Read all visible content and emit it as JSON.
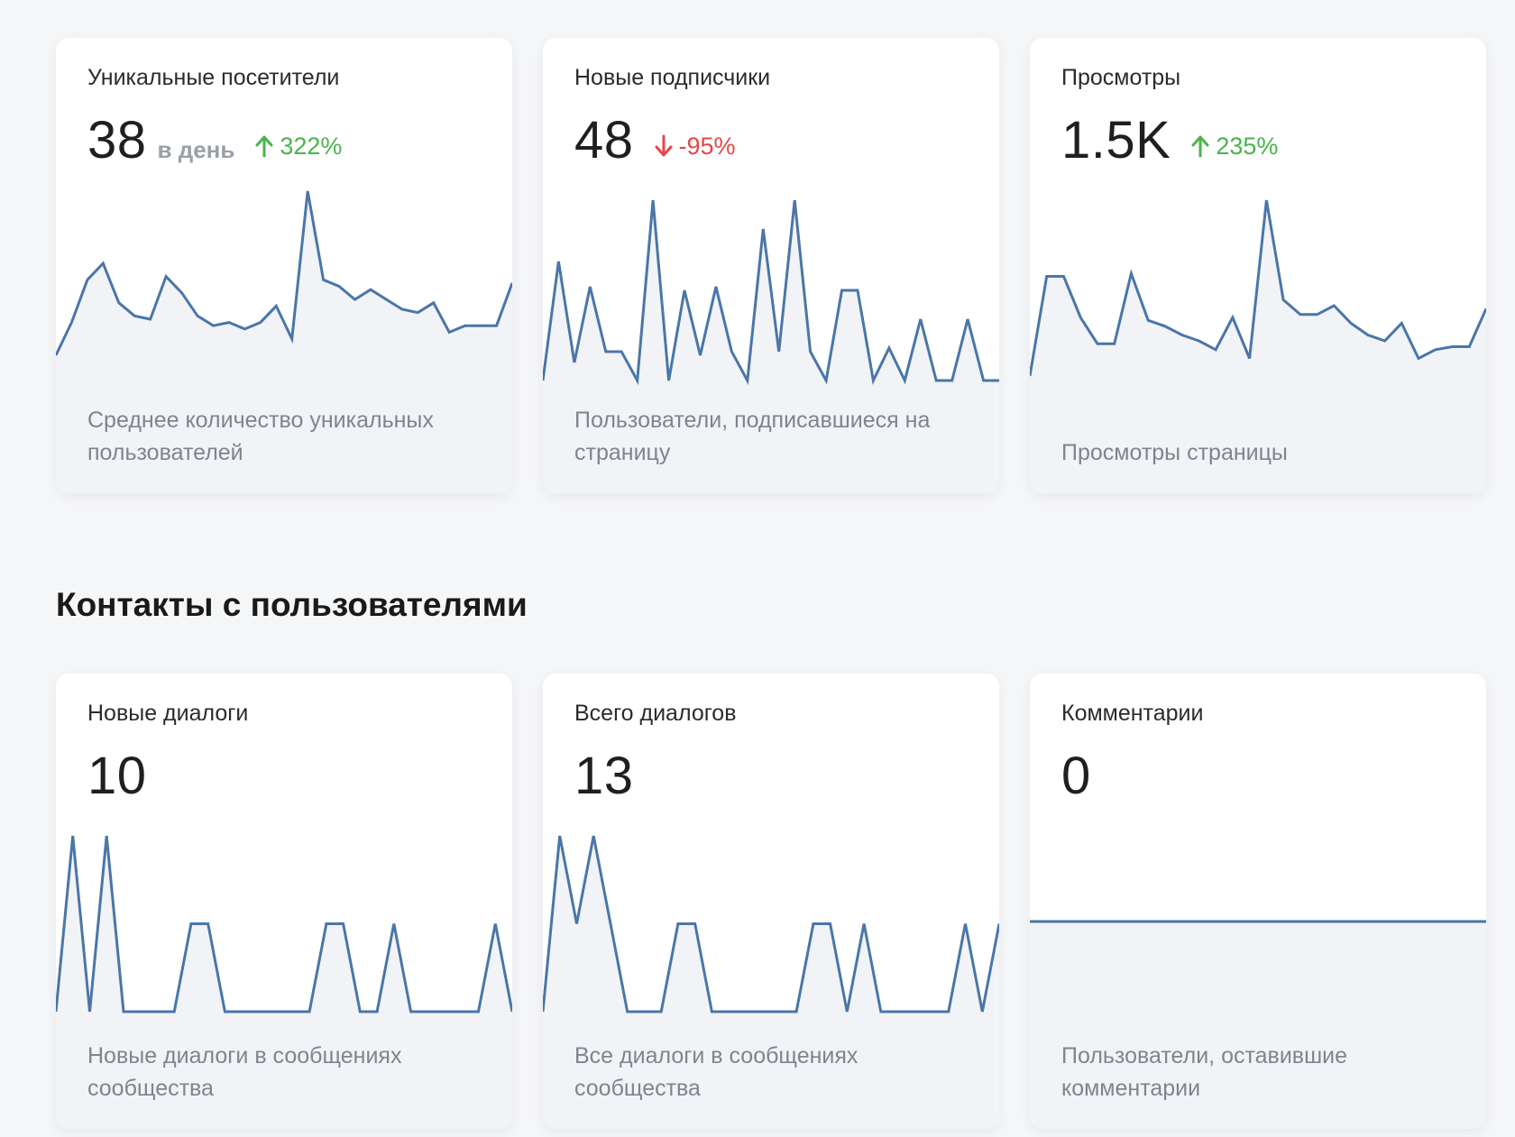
{
  "section_title": "Контакты с пользователями",
  "cards": [
    {
      "title": "Уникальные посетители",
      "value": "38",
      "unit": "в день",
      "change": "322%",
      "change_dir": "up",
      "description": "Среднее количество уникальных пользователей",
      "series": [
        0,
        10,
        23,
        28,
        16,
        12,
        11,
        24,
        19,
        12,
        9,
        10,
        8,
        10,
        15,
        5,
        50,
        23,
        21,
        17,
        20,
        17,
        14,
        13,
        16,
        7,
        9,
        9,
        9,
        22
      ]
    },
    {
      "title": "Новые подписчики",
      "value": "48",
      "unit": "",
      "change": "-95%",
      "change_dir": "down",
      "description": "Пользователи, подписавшиеся на страницу",
      "series": [
        0,
        33,
        5,
        26,
        8,
        8,
        0,
        50,
        0,
        25,
        7,
        26,
        8,
        0,
        42,
        8,
        50,
        8,
        0,
        25,
        25,
        0,
        9,
        0,
        17,
        0,
        0,
        17,
        0,
        0
      ]
    },
    {
      "title": "Просмотры",
      "value": "1.5K",
      "unit": "",
      "change": "235%",
      "change_dir": "up",
      "description": "Просмотры страницы",
      "series": [
        0,
        34,
        34,
        20,
        11,
        11,
        35,
        19,
        17,
        14,
        12,
        9,
        20,
        6,
        60,
        26,
        21,
        21,
        24,
        18,
        14,
        12,
        18,
        6,
        9,
        10,
        10,
        23
      ]
    },
    {
      "title": "Новые диалоги",
      "value": "10",
      "unit": "",
      "change": "",
      "change_dir": "",
      "description": "Новые диалоги в сообщениях сообщества",
      "series": [
        0,
        2,
        0,
        2,
        0,
        0,
        0,
        0,
        1,
        1,
        0,
        0,
        0,
        0,
        0,
        0,
        1,
        1,
        0,
        0,
        1,
        0,
        0,
        0,
        0,
        0,
        1,
        0
      ]
    },
    {
      "title": "Всего диалогов",
      "value": "13",
      "unit": "",
      "change": "",
      "change_dir": "",
      "description": "Все диалоги в сообщениях сообщества",
      "series": [
        0,
        2,
        1,
        2,
        1,
        0,
        0,
        0,
        1,
        1,
        0,
        0,
        0,
        0,
        0,
        0,
        1,
        1,
        0,
        1,
        0,
        0,
        0,
        0,
        0,
        1,
        0,
        1
      ]
    },
    {
      "title": "Комментарии",
      "value": "0",
      "unit": "",
      "change": "",
      "change_dir": "",
      "description": "Пользователи, оставившие комментарии",
      "series": [
        0,
        0,
        0,
        0,
        0,
        0,
        0,
        0,
        0,
        0,
        0,
        0,
        0,
        0,
        0,
        0,
        0,
        0,
        0,
        0,
        0,
        0,
        0,
        0,
        0,
        0,
        0,
        0
      ]
    }
  ],
  "colors": {
    "line": "#4a76a8",
    "fill": "#f2f3f6",
    "up": "#4bb34b",
    "down": "#e64646"
  },
  "icons": {
    "up": "arrow-up-icon",
    "down": "arrow-down-icon"
  }
}
